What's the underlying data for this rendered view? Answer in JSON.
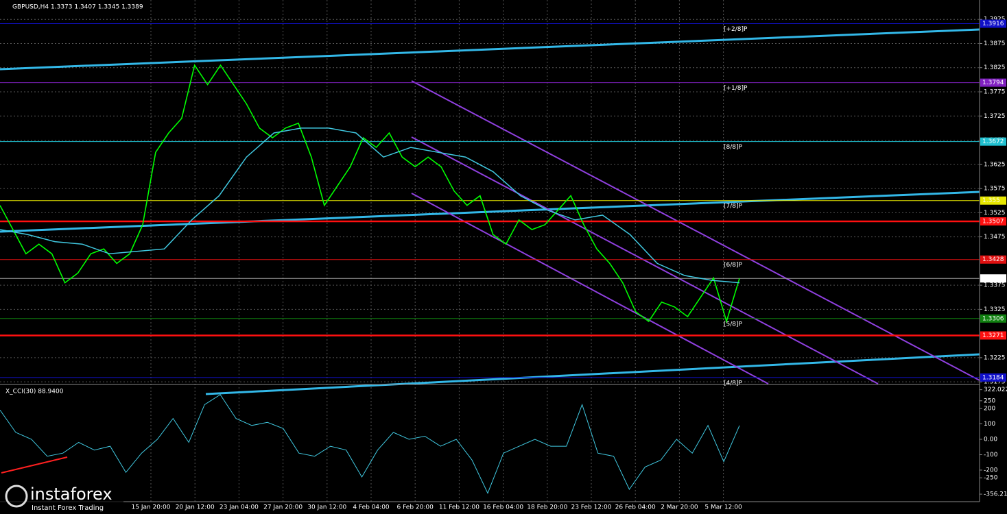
{
  "chart_data": {
    "type": "line",
    "title": "GBPUSD,H4  1.3373 1.3407 1.3345 1.3389",
    "ylim": [
      1.3171,
      1.3965
    ],
    "yticks": [
      1.3925,
      1.3875,
      1.3825,
      1.3775,
      1.3725,
      1.3675,
      1.3625,
      1.3575,
      1.3525,
      1.3475,
      1.3375,
      1.3325,
      1.3225,
      1.3175
    ],
    "grid": true,
    "x_labels": [
      "15 Jan 20:00",
      "20 Jan 12:00",
      "23 Jan 04:00",
      "27 Jan 20:00",
      "30 Jan 12:00",
      "4 Feb 04:00",
      "6 Feb 20:00",
      "11 Feb 12:00",
      "16 Feb 04:00",
      "18 Feb 20:00",
      "23 Feb 12:00",
      "26 Feb 04:00",
      "2 Mar 20:00",
      "5 Mar 12:00"
    ],
    "series": [
      {
        "name": "GBPUSD",
        "color": "#00ff00",
        "values": [
          1.354,
          1.349,
          1.344,
          1.346,
          1.344,
          1.338,
          1.34,
          1.344,
          1.345,
          1.342,
          1.344,
          1.35,
          1.365,
          1.369,
          1.372,
          1.383,
          1.379,
          1.383,
          1.379,
          1.375,
          1.37,
          1.368,
          1.37,
          1.371,
          1.364,
          1.354,
          1.358,
          1.362,
          1.368,
          1.366,
          1.369,
          1.364,
          1.362,
          1.364,
          1.362,
          1.357,
          1.354,
          1.356,
          1.348,
          1.346,
          1.351,
          1.349,
          1.35,
          1.353,
          1.356,
          1.35,
          1.345,
          1.342,
          1.338,
          1.332,
          1.33,
          1.334,
          1.333,
          1.331,
          1.335,
          1.339,
          1.33,
          1.3389
        ]
      },
      {
        "name": "MA",
        "color": "#40c8e0",
        "values": [
          1.349,
          1.348,
          1.3465,
          1.346,
          1.344,
          1.3445,
          1.345,
          1.351,
          1.356,
          1.364,
          1.369,
          1.37,
          1.37,
          1.369,
          1.364,
          1.366,
          1.365,
          1.364,
          1.361,
          1.356,
          1.353,
          1.351,
          1.352,
          1.348,
          1.342,
          1.3395,
          1.3385,
          1.338
        ]
      }
    ],
    "levels": [
      {
        "value": 1.3916,
        "label": "[+2/8]P",
        "color": "#1010c8"
      },
      {
        "value": 1.3794,
        "label": "[+1/8]P",
        "color": "#8020c0"
      },
      {
        "value": 1.3672,
        "label": "[8/8]P",
        "color": "#20c0d0"
      },
      {
        "value": 1.355,
        "label": "[7/8]P",
        "color": "#e8e800"
      },
      {
        "value": 1.3507,
        "color": "#ff1010"
      },
      {
        "value": 1.3428,
        "label": "[6/8]P",
        "color": "#e01010"
      },
      {
        "value": 1.3389,
        "color": "#a0a0a0"
      },
      {
        "value": 1.3306,
        "label": "[5/8]P",
        "color": "#108010"
      },
      {
        "value": 1.3271,
        "color": "#ff1010"
      },
      {
        "value": 1.3184,
        "label": "[4/8]P",
        "color": "#1010c8"
      }
    ],
    "indicator": {
      "title": "X_CCI(30) 88.9400",
      "color": "#40c8e0",
      "ylim": [
        -405,
        347
      ],
      "yticks": [
        322.0224,
        250,
        200,
        100,
        {
          "value": 0,
          "label": "0.00"
        },
        -100,
        -200,
        -250,
        -356.214
      ],
      "values": [
        190,
        45,
        0,
        -110,
        -90,
        -20,
        -70,
        -45,
        -215,
        -90,
        0,
        135,
        -20,
        225,
        290,
        135,
        90,
        110,
        70,
        -90,
        -110,
        -45,
        -70,
        -245,
        -70,
        45,
        0,
        20,
        -45,
        0,
        -135,
        -350,
        -90,
        -45,
        0,
        -45,
        -45,
        225,
        -90,
        -110,
        -325,
        -180,
        -135,
        0,
        -90,
        90,
        -145,
        88.94
      ]
    },
    "watermark": {
      "brand": "instaforex",
      "tagline": "Instant Forex Trading"
    }
  }
}
